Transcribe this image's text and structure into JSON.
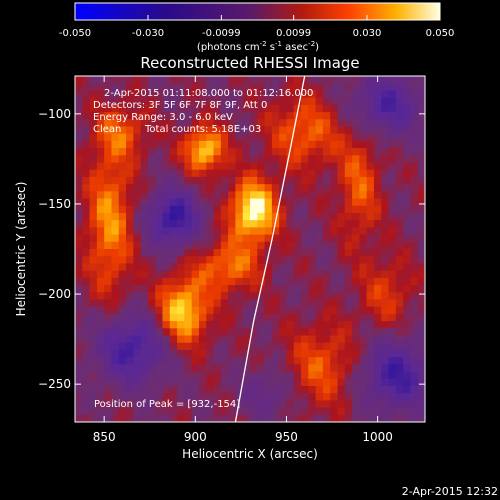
{
  "chart_data": {
    "type": "heatmap",
    "title": "Reconstructed RHESSI Image",
    "xlabel": "Heliocentric X (arcsec)",
    "ylabel": "Heliocentric Y (arcsec)",
    "xlim": [
      834,
      1026
    ],
    "ylim": [
      -271,
      -79
    ],
    "xticks": [
      850,
      900,
      950,
      1000
    ],
    "yticks": [
      -100,
      -150,
      -200,
      -250
    ],
    "grid": false,
    "colorbar": {
      "placement": "top",
      "range": [
        -0.05,
        0.05
      ],
      "ticks": [
        "-0.050",
        "-0.030",
        "-0.0099",
        "0.0099",
        "0.030",
        "0.050"
      ],
      "unit_prefix": "(photons cm",
      "unit_exp1": "-2",
      "unit_mid": " s",
      "unit_exp2": "-1",
      "unit_mid2": " asec",
      "unit_exp3": "-2",
      "unit_suffix": ")"
    },
    "annotations": [
      "2-Apr-2015 01:11:08.000 to 01:12:16.000",
      "Detectors: 3F 5F 6F 7F 8F 9F, Att 0",
      "Energy Range: 3.0 - 6.0 keV",
      "Clean",
      "Total counts: 5.18E+03",
      "Position of Peak = [932,-154]"
    ],
    "peak": [
      932,
      -154
    ],
    "limb_curve": [
      [
        960,
        -79
      ],
      [
        952,
        -120
      ],
      [
        942,
        -170
      ],
      [
        932,
        -215
      ],
      [
        922,
        -271
      ]
    ],
    "sources": [
      {
        "x": 932,
        "y": -154,
        "amp": 1.0,
        "sx": 9,
        "sy": 12
      },
      {
        "x": 905,
        "y": -120,
        "amp": 0.8,
        "sx": 8,
        "sy": 9
      },
      {
        "x": 893,
        "y": -210,
        "amp": 0.85,
        "sx": 10,
        "sy": 13
      },
      {
        "x": 918,
        "y": -185,
        "amp": 0.55,
        "sx": 12,
        "sy": 10
      },
      {
        "x": 853,
        "y": -160,
        "amp": 0.6,
        "sx": 9,
        "sy": 30
      },
      {
        "x": 960,
        "y": -110,
        "amp": 0.5,
        "sx": 14,
        "sy": 14
      },
      {
        "x": 990,
        "y": -140,
        "amp": 0.45,
        "sx": 8,
        "sy": 22
      },
      {
        "x": 970,
        "y": -240,
        "amp": 0.45,
        "sx": 14,
        "sy": 16
      },
      {
        "x": 1005,
        "y": -200,
        "amp": 0.35,
        "sx": 10,
        "sy": 14
      },
      {
        "x": 860,
        "y": -110,
        "amp": 0.4,
        "sx": 10,
        "sy": 10
      },
      {
        "x": 888,
        "y": -158,
        "amp": -0.85,
        "sx": 10,
        "sy": 11
      },
      {
        "x": 865,
        "y": -230,
        "amp": -0.75,
        "sx": 14,
        "sy": 14
      },
      {
        "x": 1010,
        "y": -245,
        "amp": -0.75,
        "sx": 14,
        "sy": 14
      },
      {
        "x": 1005,
        "y": -95,
        "amp": -0.65,
        "sx": 14,
        "sy": 12
      },
      {
        "x": 940,
        "y": -255,
        "amp": -0.35,
        "sx": 10,
        "sy": 10
      }
    ]
  },
  "timestamp": "2-Apr-2015 12:32"
}
